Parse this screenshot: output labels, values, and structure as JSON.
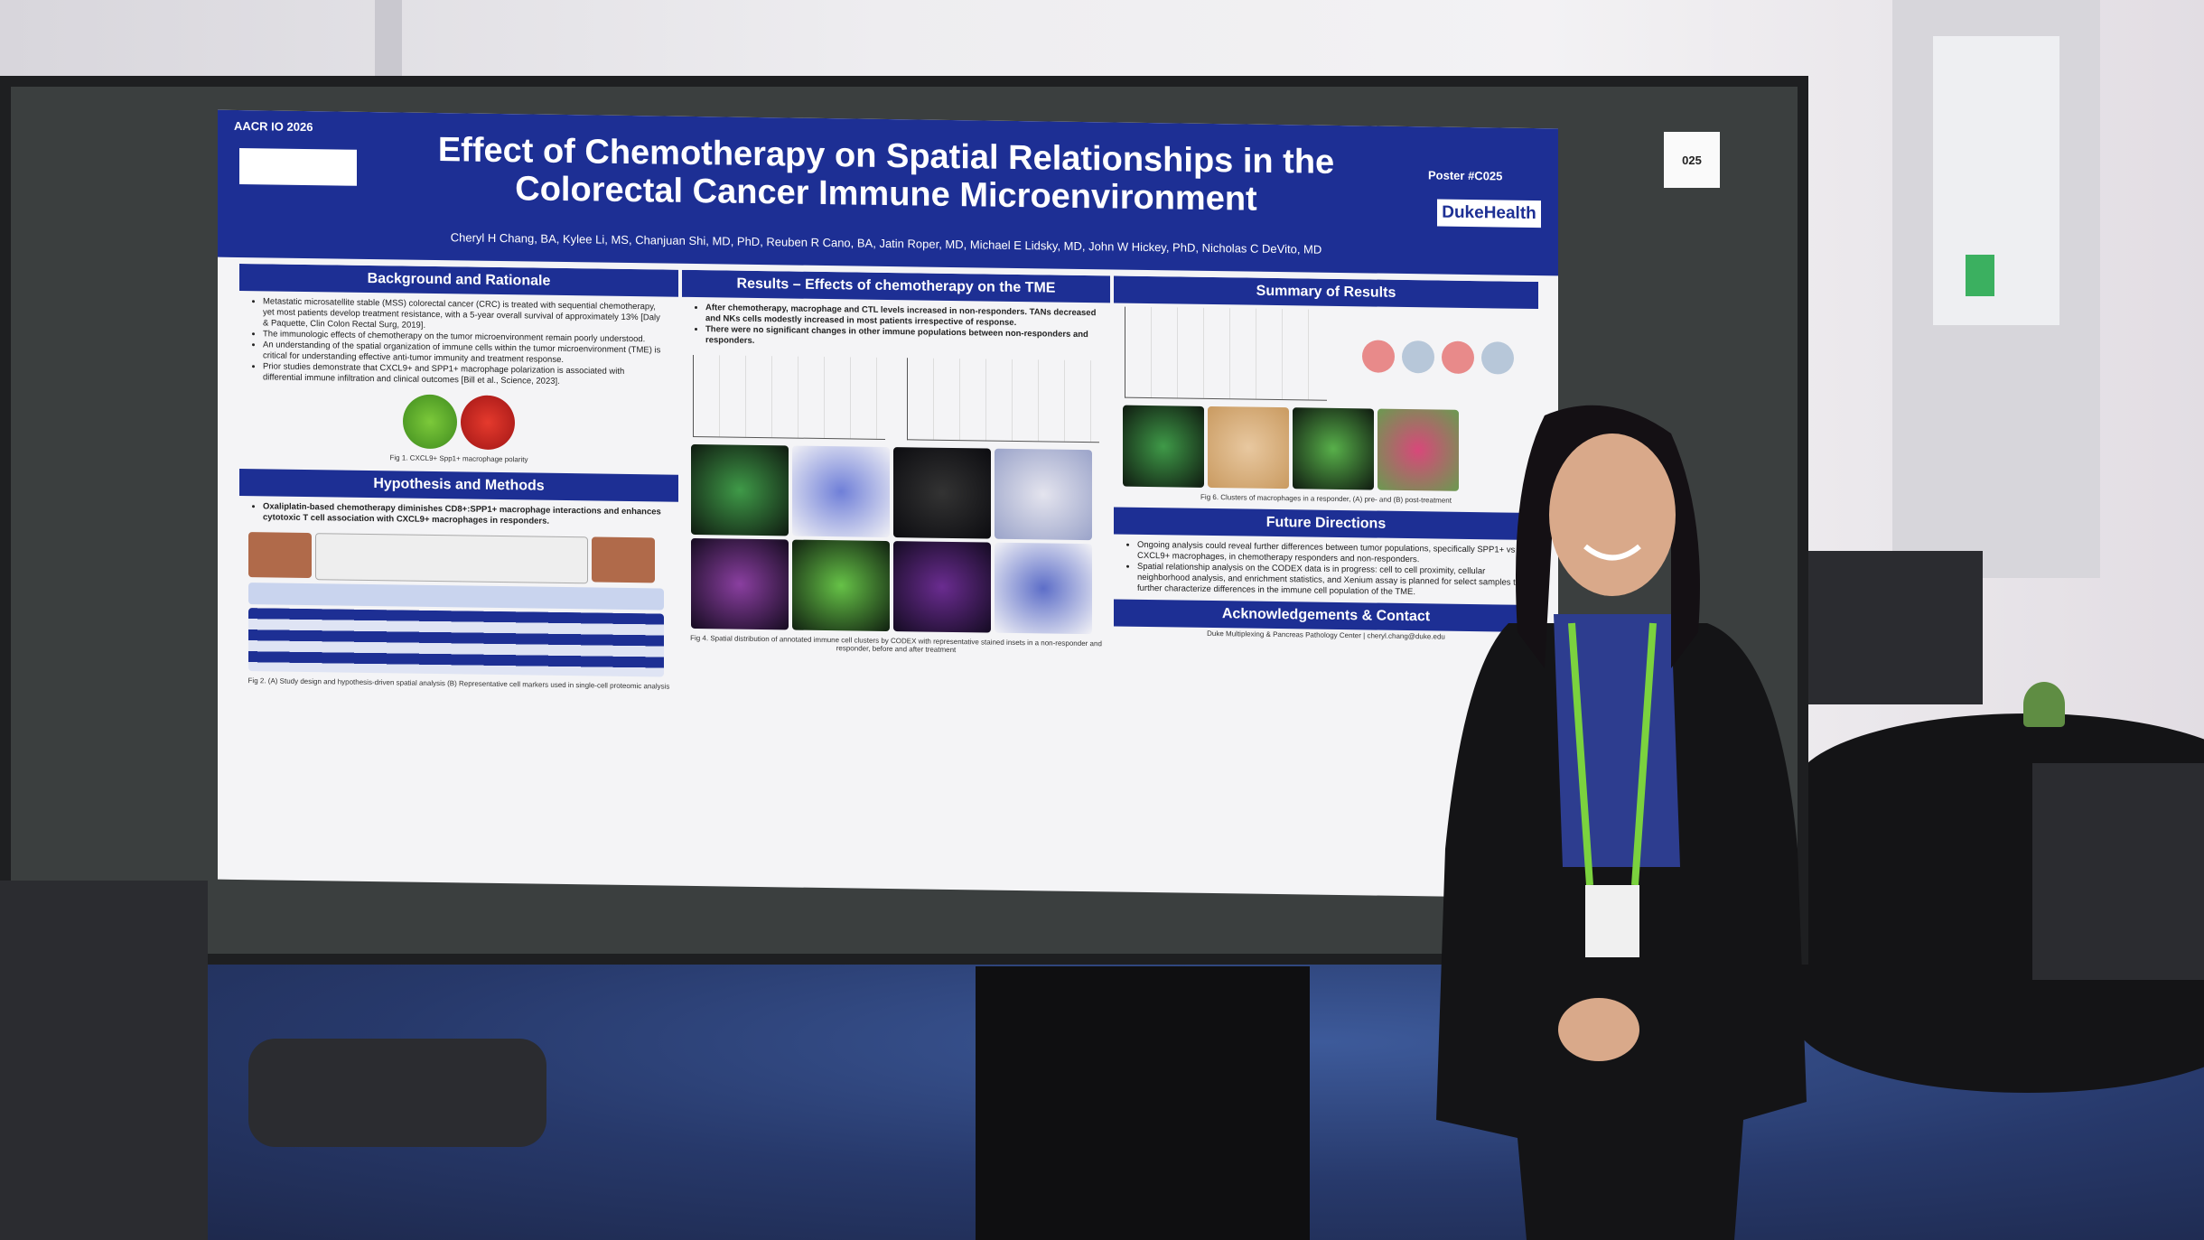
{
  "poster": {
    "conference": "AACR IO 2026",
    "poster_number": "Poster #C025",
    "board_number": "025",
    "title": "Effect of Chemotherapy on Spatial Relationships in the Colorectal Cancer Immune Microenvironment",
    "authors": "Cheryl H Chang, BA, Kylee Li, MS, Chanjuan Shi, MD, PhD, Reuben R Cano, BA, Jatin Roper, MD, Michael E Lidsky, MD, John W Hickey, PhD, Nicholas C DeVito, MD",
    "logo": "DukeHealth",
    "sections": [
      {
        "heading": "Background and Rationale",
        "bullets": [
          "Metastatic microsatellite stable (MSS) colorectal cancer (CRC) is treated with sequential chemotherapy, yet most patients develop treatment resistance, with a 5-year overall survival of approximately 13% [Daly & Paquette, Clin Colon Rectal Surg, 2019].",
          "The immunologic effects of chemotherapy on the tumor microenvironment remain poorly understood.",
          "An understanding of the spatial organization of immune cells within the tumor microenvironment (TME) is critical for understanding effective anti-tumor immunity and treatment response.",
          "Prior studies demonstrate that CXCL9+ and SPP1+ macrophage polarization is associated with differential immune infiltration and clinical outcomes [Bill et al., Science, 2023]."
        ],
        "caption": "Fig 1. CXCL9+ Spp1+ macrophage polarity"
      },
      {
        "heading": "Hypothesis and Methods",
        "bullets": [
          "Oxaliplatin-based chemotherapy diminishes CD8+:SPP1+ macrophage interactions and enhances cytotoxic T cell association with CXCL9+ macrophages in responders."
        ],
        "caption": "Fig 2. (A) Study design and hypothesis-driven spatial analysis (B) Representative cell markers used in single-cell proteomic analysis"
      },
      {
        "heading": "Results – Effects of chemotherapy on the TME",
        "bullets": [
          "After chemotherapy, macrophage and CTL levels increased in non-responders. TANs decreased and NKs cells modestly increased in most patients irrespective of response.",
          "There were no significant changes in other immune populations between non-responders and responders."
        ],
        "caption": "Fig 4. Spatial distribution of annotated immune cell clusters by CODEX with representative stained insets in a non-responder and responder, before and after treatment"
      },
      {
        "heading": "Summary of Results",
        "bullets": [],
        "caption": "Fig 6. Clusters of macrophages in a responder, (A) pre- and (B) post-treatment"
      },
      {
        "heading": "Future Directions",
        "bullets": [
          "Ongoing analysis could reveal further differences between tumor populations, specifically SPP1+ vs CXCL9+ macrophages, in chemotherapy responders and non-responders.",
          "Spatial relationship analysis on the CODEX data is in progress: cell to cell proximity, cellular neighborhood analysis, and enrichment statistics, and Xenium assay is planned for select samples to further characterize differences in the immune cell population of the TME."
        ],
        "caption": ""
      },
      {
        "heading": "Acknowledgements & Contact",
        "bullets": [],
        "caption": "Duke Multiplexing & Pancreas Pathology Center | cheryl.chang@duke.edu"
      }
    ]
  }
}
